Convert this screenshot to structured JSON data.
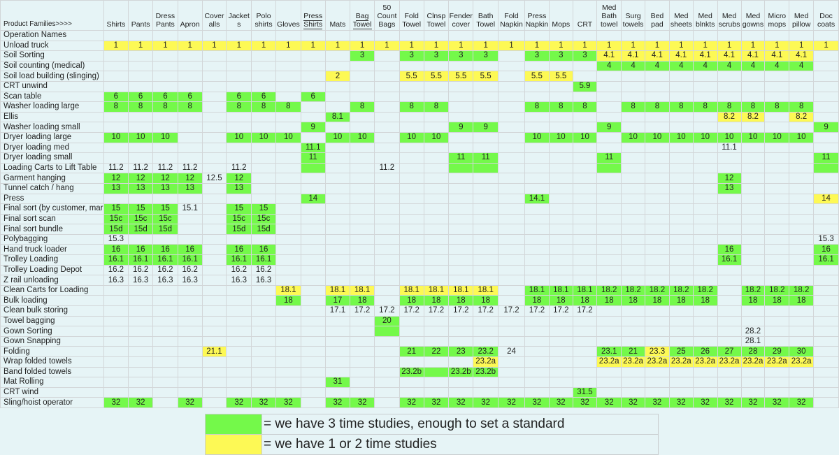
{
  "header_label": "Product Families>>>>",
  "columns": [
    {
      "label": "Shirts"
    },
    {
      "label": "Pants"
    },
    {
      "label": "Dress Pants"
    },
    {
      "label": "Apron"
    },
    {
      "label": "Cover alls"
    },
    {
      "label": "Jacket s"
    },
    {
      "label": "Polo shirts"
    },
    {
      "label": "Gloves"
    },
    {
      "label": "Press Shirts",
      "underline": true
    },
    {
      "label": "Mats"
    },
    {
      "label": "Bag Towel",
      "underline": true
    },
    {
      "label": "50 Count Bags"
    },
    {
      "label": "Fold Towel"
    },
    {
      "label": "Clnsp Towel"
    },
    {
      "label": "Fender cover"
    },
    {
      "label": "Bath Towel"
    },
    {
      "label": "Fold Napkin"
    },
    {
      "label": "Press Napkin"
    },
    {
      "label": "Mops"
    },
    {
      "label": "CRT"
    },
    {
      "label": "Med Bath towel"
    },
    {
      "label": "Surg towels"
    },
    {
      "label": "Bed pad"
    },
    {
      "label": "Med sheets"
    },
    {
      "label": "Med blnkts"
    },
    {
      "label": "Med scrubs"
    },
    {
      "label": "Med gowns"
    },
    {
      "label": "Micro mops"
    },
    {
      "label": "Med pillow"
    },
    {
      "label": "Doc coats"
    }
  ],
  "colors": {
    "green": "#74f94a",
    "yellow": "#fdf955",
    "background": "#e6f4f6",
    "grid": "#d2d6d8"
  },
  "rows": [
    {
      "name": "Operation Names",
      "cells": []
    },
    {
      "name": "Unload truck",
      "cells": [
        "1|y",
        "1|y",
        "1|y",
        "1|y",
        "1|y",
        "1|y",
        "1|y",
        "1|y",
        "1|y",
        "1|y",
        "1|y",
        "1|y",
        "1|y",
        "1|y",
        "1|y",
        "1|y",
        "1|y",
        "1|y",
        "1|y",
        "1|y",
        "1|y",
        "1|y",
        "1|y",
        "1|y",
        "1|y",
        "1|y",
        "1|y",
        "1|y",
        "1|y",
        "1|y"
      ]
    },
    {
      "name": "Soil Sorting",
      "cells": [
        "",
        "",
        "",
        "",
        "",
        "",
        "",
        "",
        "",
        "",
        "3|g",
        "",
        "3|g",
        "3|g",
        "3|g",
        "3|g",
        "",
        "3|g",
        "3|g",
        "3|g",
        "4.1|y",
        "4.1|y",
        "4.1|y",
        "4.1|y",
        "4.1|y",
        "4.1|y",
        "4.1|y",
        "4.1|y",
        "4.1|y",
        ""
      ]
    },
    {
      "name": "Soil counting (medical)",
      "cells": [
        "",
        "",
        "",
        "",
        "",
        "",
        "",
        "",
        "",
        "",
        "",
        "",
        "",
        "",
        "",
        "",
        "",
        "",
        "",
        "",
        "4|g",
        "4|g",
        "4|g",
        "4|g",
        "4|g",
        "4|g",
        "4|g",
        "4|g",
        "4|g",
        ""
      ]
    },
    {
      "name": "Soil load building (slinging)",
      "cells": [
        "",
        "",
        "",
        "",
        "",
        "",
        "",
        "",
        "",
        "2|y",
        "",
        "",
        "5.5|y",
        "5.5|y",
        "5.5|y",
        "5.5|y",
        "",
        "5.5|y",
        "5.5|y",
        "",
        "",
        "",
        "",
        "",
        "",
        "",
        "",
        "",
        "",
        ""
      ]
    },
    {
      "name": "CRT unwind",
      "cells": [
        "",
        "",
        "",
        "",
        "",
        "",
        "",
        "",
        "",
        "",
        "",
        "",
        "",
        "",
        "",
        "",
        "",
        "",
        "",
        "5.9|g",
        "",
        "",
        "",
        "",
        "",
        "",
        "",
        "",
        "",
        ""
      ]
    },
    {
      "name": "Scan table",
      "cells": [
        "6|g",
        "6|g",
        "6|g",
        "6|g",
        "",
        "6|g",
        "6|g",
        "",
        "6|g",
        "",
        "",
        "",
        "",
        "",
        "",
        "",
        "",
        "",
        "",
        "",
        "",
        "",
        "",
        "",
        "",
        "",
        "",
        "",
        "",
        ""
      ]
    },
    {
      "name": "Washer loading large",
      "cells": [
        "8|g",
        "8|g",
        "8|g",
        "8|g",
        "",
        "8|g",
        "8|g",
        "8|g",
        "",
        "",
        "8|g",
        "",
        "8|g",
        "8|g",
        "",
        "",
        "",
        "8|g",
        "8|g",
        "8|g",
        "",
        "8|g",
        "8|g",
        "8|g",
        "8|g",
        "8|g",
        "8|g",
        "8|g",
        "8|g",
        ""
      ]
    },
    {
      "name": "Ellis",
      "cells": [
        "",
        "",
        "",
        "",
        "",
        "",
        "",
        "",
        "",
        "8.1|g",
        "",
        "",
        "",
        "",
        "",
        "",
        "",
        "",
        "",
        "",
        "",
        "",
        "",
        "",
        "",
        "8.2|y",
        "8.2|y",
        "",
        "8.2|y",
        ""
      ]
    },
    {
      "name": "Washer loading small",
      "cells": [
        "",
        "",
        "",
        "",
        "",
        "",
        "",
        "",
        "9|g",
        "",
        "",
        "",
        "",
        "",
        "9|g",
        "9|g",
        "",
        "",
        "",
        "",
        "9|g",
        "",
        "",
        "",
        "",
        "",
        "",
        "",
        "",
        "9|g"
      ]
    },
    {
      "name": "Dryer loading large",
      "cells": [
        "10|g",
        "10|g",
        "10|g",
        "",
        "",
        "10|g",
        "10|g",
        "10|g",
        "",
        "10|g",
        "10|g",
        "",
        "10|g",
        "10|g",
        "",
        "",
        "",
        "10|g",
        "10|g",
        "10|g",
        "",
        "10|g",
        "10|g",
        "10|g",
        "10|g",
        "10|g",
        "10|g",
        "10|g",
        "10|g",
        ""
      ]
    },
    {
      "name": "Dryer loading med",
      "cells": [
        "",
        "",
        "",
        "",
        "",
        "",
        "",
        "",
        "11.1|g",
        "",
        "",
        "",
        "",
        "",
        "",
        "",
        "",
        "",
        "",
        "",
        "",
        "",
        "",
        "",
        "",
        "11.1",
        "",
        "",
        "",
        ""
      ]
    },
    {
      "name": "Dryer loading small",
      "cells": [
        "",
        "",
        "",
        "",
        "",
        "",
        "",
        "",
        "11|g",
        "",
        "",
        "",
        "",
        "",
        "11|g",
        "11|g",
        "",
        "",
        "",
        "",
        "11|g",
        "",
        "",
        "",
        "",
        "",
        "",
        "",
        "",
        "11|g"
      ]
    },
    {
      "name": "Loading Carts to Lift Table",
      "cells": [
        "11.2",
        "11.2",
        "11.2",
        "11.2",
        "",
        "11.2",
        "",
        "",
        "|g",
        "",
        "",
        "11.2",
        "",
        "",
        "|g",
        "|g",
        "",
        "",
        "",
        "",
        "|g",
        "",
        "",
        "",
        "",
        "",
        "",
        "",
        "",
        "|g"
      ]
    },
    {
      "name": "Garment hanging",
      "cells": [
        "12|g",
        "12|g",
        "12|g",
        "12|g",
        "12.5",
        "12|g",
        "",
        "",
        "",
        "",
        "",
        "",
        "",
        "",
        "",
        "",
        "",
        "",
        "",
        "",
        "",
        "",
        "",
        "",
        "",
        "12|g",
        "",
        "",
        "",
        ""
      ]
    },
    {
      "name": "Tunnel catch / hang",
      "cells": [
        "13|g",
        "13|g",
        "13|g",
        "13|g",
        "",
        "13|g",
        "",
        "",
        "",
        "",
        "",
        "",
        "",
        "",
        "",
        "",
        "",
        "",
        "",
        "",
        "",
        "",
        "",
        "",
        "",
        "13|g",
        "",
        "",
        "",
        ""
      ]
    },
    {
      "name": "Press",
      "cells": [
        "",
        "",
        "",
        "",
        "",
        "",
        "",
        "",
        "14|g",
        "",
        "",
        "",
        "",
        "",
        "",
        "",
        "",
        "14.1|g",
        "",
        "",
        "",
        "",
        "",
        "",
        "",
        "",
        "",
        "",
        "",
        "14|y"
      ]
    },
    {
      "name": "Final sort (by customer, mar",
      "cells": [
        "15|g",
        "15|g",
        "15|g",
        "15.1",
        "",
        "15|g",
        "15|g",
        "",
        "",
        "",
        "",
        "",
        "",
        "",
        "",
        "",
        "",
        "",
        "",
        "",
        "",
        "",
        "",
        "",
        "",
        "",
        "",
        "",
        "",
        ""
      ]
    },
    {
      "name": "Final sort scan",
      "cells": [
        "15c|g",
        "15c|g",
        "15c|g",
        "",
        "",
        "15c|g",
        "15c|g",
        "",
        "",
        "",
        "",
        "",
        "",
        "",
        "",
        "",
        "",
        "",
        "",
        "",
        "",
        "",
        "",
        "",
        "",
        "",
        "",
        "",
        "",
        ""
      ]
    },
    {
      "name": "Final sort bundle",
      "cells": [
        "15d|g",
        "15d|g",
        "15d|g",
        "",
        "",
        "15d|g",
        "15d|g",
        "",
        "",
        "",
        "",
        "",
        "",
        "",
        "",
        "",
        "",
        "",
        "",
        "",
        "",
        "",
        "",
        "",
        "",
        "",
        "",
        "",
        "",
        ""
      ]
    },
    {
      "name": "Polybagging",
      "cells": [
        "15.3",
        "",
        "",
        "",
        "",
        "",
        "",
        "",
        "",
        "",
        "",
        "",
        "",
        "",
        "",
        "",
        "",
        "",
        "",
        "",
        "",
        "",
        "",
        "",
        "",
        "",
        "",
        "",
        "",
        "15.3"
      ]
    },
    {
      "name": "Hand truck loader",
      "cells": [
        "16|g",
        "16|g",
        "16|g",
        "16|g",
        "",
        "16|g",
        "16|g",
        "",
        "",
        "",
        "",
        "",
        "",
        "",
        "",
        "",
        "",
        "",
        "",
        "",
        "",
        "",
        "",
        "",
        "",
        "16|g",
        "",
        "",
        "",
        "16|g"
      ]
    },
    {
      "name": "Trolley Loading",
      "cells": [
        "16.1|g",
        "16.1|g",
        "16.1|g",
        "16.1|g",
        "",
        "16.1|g",
        "16.1|g",
        "",
        "",
        "",
        "",
        "",
        "",
        "",
        "",
        "",
        "",
        "",
        "",
        "",
        "",
        "",
        "",
        "",
        "",
        "16.1|g",
        "",
        "",
        "",
        "16.1|g"
      ]
    },
    {
      "name": "Trolley Loading Depot",
      "cells": [
        "16.2",
        "16.2",
        "16.2",
        "16.2",
        "",
        "16.2",
        "16.2",
        "",
        "",
        "",
        "",
        "",
        "",
        "",
        "",
        "",
        "",
        "",
        "",
        "",
        "",
        "",
        "",
        "",
        "",
        "",
        "",
        "",
        "",
        ""
      ]
    },
    {
      "name": "Z rail unloading",
      "cells": [
        "16.3",
        "16.3",
        "16.3",
        "16.3",
        "",
        "16.3",
        "16.3",
        "",
        "",
        "",
        "",
        "",
        "",
        "",
        "",
        "",
        "",
        "",
        "",
        "",
        "",
        "",
        "",
        "",
        "",
        "",
        "",
        "",
        "",
        ""
      ]
    },
    {
      "name": "Clean Carts for Loading",
      "cells": [
        "",
        "",
        "",
        "",
        "",
        "",
        "",
        "18.1|y",
        "",
        "18.1|y",
        "18.1|y",
        "",
        "18.1|y",
        "18.1|y",
        "18.1|y",
        "18.1|y",
        "",
        "18.1|g",
        "18.1|g",
        "18.1|g",
        "18.2|g",
        "18.2|g",
        "18.2|g",
        "18.2|g",
        "18.2|g",
        "",
        "18.2|g",
        "18.2|g",
        "18.2|g",
        ""
      ]
    },
    {
      "name": "Bulk loading",
      "cells": [
        "",
        "",
        "",
        "",
        "",
        "",
        "",
        "18|g",
        "",
        "17|g",
        "18|g",
        "",
        "18|g",
        "18|g",
        "18|g",
        "18|g",
        "",
        "18|g",
        "18|g",
        "18|g",
        "18|g",
        "18|g",
        "18|g",
        "18|g",
        "18|g",
        "",
        "18|g",
        "18|g",
        "18|g",
        ""
      ]
    },
    {
      "name": "Clean bulk storing",
      "cells": [
        "",
        "",
        "",
        "",
        "",
        "",
        "",
        "",
        "",
        "17.1",
        "17.2",
        "17.2",
        "17.2",
        "17.2",
        "17.2",
        "17.2",
        "17.2",
        "17.2",
        "17.2",
        "17.2",
        "",
        "",
        "",
        "",
        "",
        "",
        "",
        "",
        "",
        ""
      ]
    },
    {
      "name": "Towel bagging",
      "cells": [
        "",
        "",
        "",
        "",
        "",
        "",
        "",
        "",
        "",
        "",
        "",
        "20|g",
        "",
        "",
        "",
        "",
        "",
        "",
        "",
        "",
        "",
        "",
        "",
        "",
        "",
        "",
        "",
        "",
        "",
        ""
      ]
    },
    {
      "name": "Gown Sorting",
      "cells": [
        "",
        "",
        "",
        "",
        "",
        "",
        "",
        "",
        "",
        "",
        "",
        "|g",
        "",
        "",
        "",
        "",
        "",
        "",
        "",
        "",
        "",
        "",
        "",
        "",
        "",
        "",
        "28.2",
        "",
        "",
        ""
      ]
    },
    {
      "name": "Gown Snapping",
      "cells": [
        "",
        "",
        "",
        "",
        "",
        "",
        "",
        "",
        "",
        "",
        "",
        "",
        "",
        "",
        "",
        "",
        "",
        "",
        "",
        "",
        "",
        "",
        "",
        "",
        "",
        "",
        "28.1",
        "",
        "",
        ""
      ]
    },
    {
      "name": "Folding",
      "cells": [
        "",
        "",
        "",
        "",
        "21.1|y",
        "",
        "",
        "",
        "",
        "",
        "",
        "",
        "21|g",
        "22|g",
        "23|g",
        "23.2|g",
        "24",
        "",
        "",
        "",
        "23.1|g",
        "21|g",
        "23.3|y",
        "25|g",
        "26|g",
        "27|g",
        "28|g",
        "29|g",
        "30|g",
        ""
      ]
    },
    {
      "name": "Wrap folded towels",
      "cells": [
        "",
        "",
        "",
        "",
        "",
        "",
        "",
        "",
        "",
        "",
        "",
        "",
        "",
        "",
        "",
        "23.2a|y",
        "",
        "",
        "",
        "",
        "23.2a|y",
        "23.2a|y",
        "23.2a|y",
        "23.2a|y",
        "23.2a|y",
        "23.2a|y",
        "23.2a|y",
        "23.2a|y",
        "23.2a|y",
        ""
      ]
    },
    {
      "name": "Band folded towels",
      "cells": [
        "",
        "",
        "",
        "",
        "",
        "",
        "",
        "",
        "",
        "",
        "",
        "",
        "23.2b|g",
        "|g",
        "23.2b|g",
        "23.2b|g",
        "",
        "",
        "",
        "",
        "",
        "",
        "",
        "",
        "",
        "",
        "",
        "",
        "",
        ""
      ]
    },
    {
      "name": "Mat Rolling",
      "cells": [
        "",
        "",
        "",
        "",
        "",
        "",
        "",
        "",
        "",
        "31|g",
        "",
        "",
        "",
        "",
        "",
        "",
        "",
        "",
        "",
        "",
        "",
        "",
        "",
        "",
        "",
        "",
        "",
        "",
        "",
        ""
      ]
    },
    {
      "name": "CRT wind",
      "cells": [
        "",
        "",
        "",
        "",
        "",
        "",
        "",
        "",
        "",
        "",
        "",
        "",
        "",
        "",
        "",
        "",
        "",
        "",
        "",
        "31.5|g",
        "",
        "",
        "",
        "",
        "",
        "",
        "",
        "",
        "",
        ""
      ]
    },
    {
      "name": "Sling/hoist operator",
      "cells": [
        "32|g",
        "32|g",
        "",
        "32|g",
        "",
        "32|g",
        "32|g",
        "32|g",
        "",
        "32|g",
        "32|g",
        "",
        "32|g",
        "32|g",
        "32|g",
        "32|g",
        "32|g",
        "32|g",
        "32|g",
        "32|g",
        "32|g",
        "32|g",
        "32|g",
        "32|g",
        "32|g",
        "32|g",
        "32|g",
        "32|g",
        "32|g",
        ""
      ]
    }
  ],
  "legend": {
    "green_text": "= we have 3 time studies, enough to set a standard",
    "yellow_text": "= we have 1 or 2 time studies"
  }
}
